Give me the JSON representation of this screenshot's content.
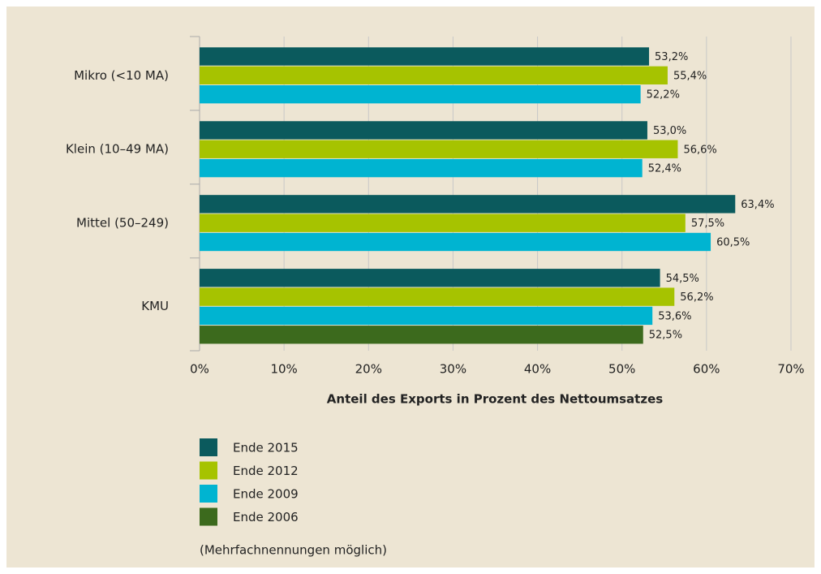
{
  "chart_data": {
    "type": "hbar",
    "categories": [
      "Mikro (<10 MA)",
      "Klein (10–49 MA)",
      "Mittel (50–249)",
      "KMU"
    ],
    "series": [
      {
        "name": "Ende 2015",
        "color": "#0b5a5d",
        "values": [
          53.2,
          53.0,
          63.4,
          54.5
        ],
        "value_labels": [
          "53,2%",
          "53,0%",
          "63,4%",
          "54,5%"
        ]
      },
      {
        "name": "Ende 2012",
        "color": "#a6c300",
        "values": [
          55.4,
          56.6,
          57.5,
          56.2
        ],
        "value_labels": [
          "55,4%",
          "56,6%",
          "57,5%",
          "56,2%"
        ]
      },
      {
        "name": "Ende 2009",
        "color": "#00b4d1",
        "values": [
          52.2,
          52.4,
          60.5,
          53.6
        ],
        "value_labels": [
          "52,2%",
          "52,4%",
          "60,5%",
          "53,6%"
        ]
      },
      {
        "name": "Ende 2006",
        "color": "#3c6a1d",
        "values": [
          null,
          null,
          null,
          52.5
        ],
        "value_labels": [
          null,
          null,
          null,
          "52,5%"
        ]
      }
    ],
    "xlabel": "Anteil des Exports in Prozent des Nettoumsatzes",
    "xlim": [
      0,
      70
    ],
    "xticks": [
      {
        "value": 0,
        "label": "0%"
      },
      {
        "value": 10,
        "label": "10%"
      },
      {
        "value": 20,
        "label": "20%"
      },
      {
        "value": 30,
        "label": "30%"
      },
      {
        "value": 40,
        "label": "40%"
      },
      {
        "value": 50,
        "label": "50%"
      },
      {
        "value": 60,
        "label": "60%"
      },
      {
        "value": 70,
        "label": "70%"
      }
    ],
    "grid": true,
    "note": "(Mehrfachnennungen möglich)"
  }
}
